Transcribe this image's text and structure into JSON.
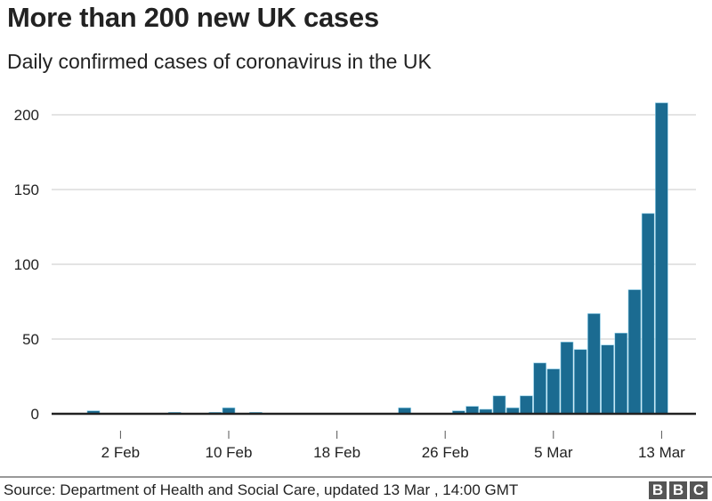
{
  "chart_data": {
    "type": "bar",
    "title": "More than 200 new UK cases",
    "subtitle": "Daily confirmed cases of coronavirus in the UK",
    "xlabel": "",
    "ylabel": "",
    "ylim": [
      0,
      200
    ],
    "yticks": [
      0,
      50,
      100,
      150,
      200
    ],
    "xtick_labels": [
      "2 Feb",
      "10 Feb",
      "18 Feb",
      "26 Feb",
      "5 Mar",
      "13 Mar"
    ],
    "xtick_day_index": [
      2,
      10,
      18,
      26,
      34,
      42
    ],
    "grid": true,
    "color": "#1b6b91",
    "categories": [
      "31 Jan",
      "1 Feb",
      "2 Feb",
      "3 Feb",
      "4 Feb",
      "5 Feb",
      "6 Feb",
      "7 Feb",
      "8 Feb",
      "9 Feb",
      "10 Feb",
      "11 Feb",
      "12 Feb",
      "13 Feb",
      "14 Feb",
      "15 Feb",
      "16 Feb",
      "17 Feb",
      "18 Feb",
      "19 Feb",
      "20 Feb",
      "21 Feb",
      "22 Feb",
      "23 Feb",
      "24 Feb",
      "25 Feb",
      "26 Feb",
      "27 Feb",
      "28 Feb",
      "29 Feb",
      "1 Mar",
      "2 Mar",
      "3 Mar",
      "4 Mar",
      "5 Mar",
      "6 Mar",
      "7 Mar",
      "8 Mar",
      "9 Mar",
      "10 Mar",
      "11 Mar",
      "12 Mar",
      "13 Mar"
    ],
    "values": [
      2,
      0,
      0,
      0,
      0,
      0,
      1,
      0,
      0,
      1,
      4,
      0,
      1,
      0,
      0,
      0,
      0,
      0,
      0,
      0,
      0,
      0,
      0,
      4,
      0,
      0,
      0,
      2,
      5,
      3,
      12,
      4,
      12,
      34,
      30,
      48,
      43,
      67,
      46,
      54,
      83,
      134,
      208
    ]
  },
  "footer": {
    "source": "Source: Department of Health and Social Care, updated 13 Mar , 14:00 GMT",
    "logo": "BBC"
  }
}
